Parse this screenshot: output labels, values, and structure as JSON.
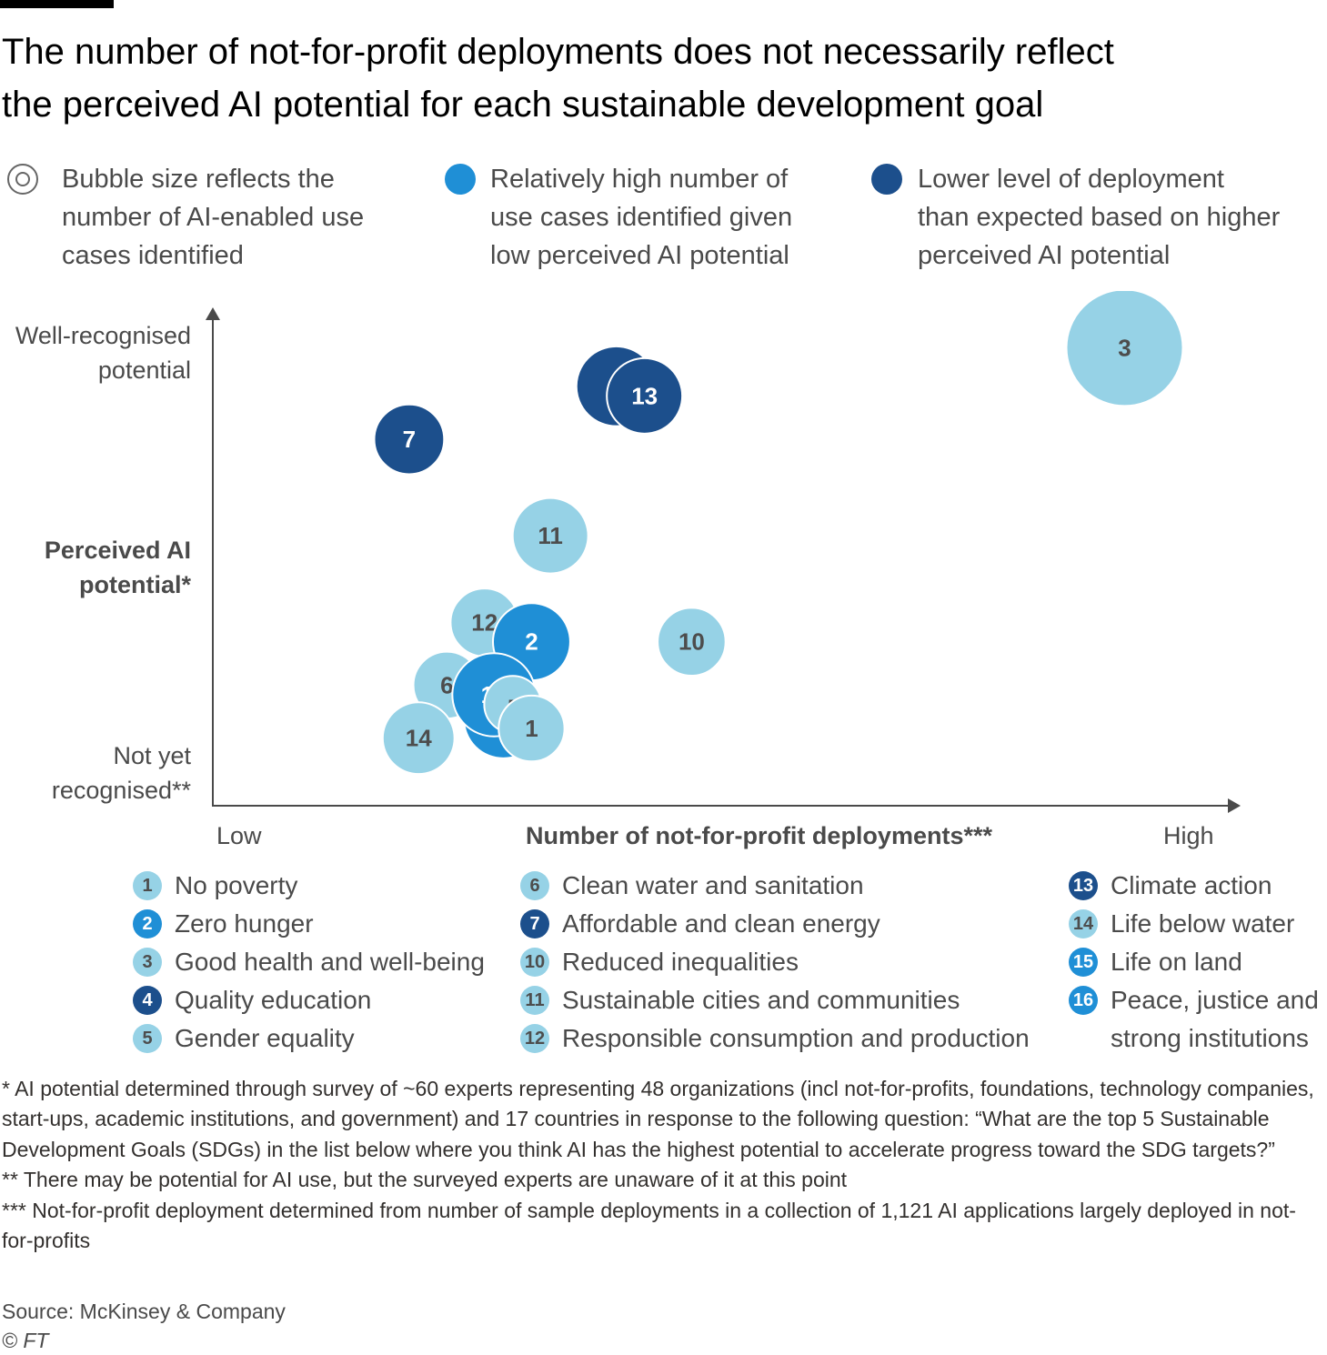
{
  "header": {
    "title_line1": "The number of not-for-profit deployments does not necessarily reflect",
    "title_line2": "the perceived AI potential for each sustainable development goal"
  },
  "key": [
    {
      "lines": [
        "Bubble size reflects the",
        "number of AI-enabled use",
        "cases identified"
      ],
      "style": "hollow"
    },
    {
      "lines": [
        "Relatively high number of",
        "use cases identified given",
        "low perceived AI potential"
      ],
      "color": "#1f8fd6"
    },
    {
      "lines": [
        "Lower level of deployment",
        "than expected based on higher",
        "perceived AI potential"
      ],
      "color": "#1c4f8c"
    }
  ],
  "colors": {
    "light": "#96d2e6",
    "mid": "#1f8fd6",
    "dark": "#1c4f8c",
    "light_text": "#4d4d4d",
    "dark_text": "#ffffff",
    "axis": "#4a4a4a"
  },
  "chart_data": {
    "type": "scatter",
    "xlabel": "Number of not-for-profit deployments***",
    "ylabel": [
      "Perceived AI",
      "potential*"
    ],
    "x_tick_labels": {
      "low": "Low",
      "high": "High"
    },
    "y_tick_labels": {
      "high": [
        "Well-recognised",
        "potential"
      ],
      "low": [
        "Not yet",
        "recognised**"
      ]
    },
    "xlim": [
      0,
      100
    ],
    "ylim": [
      0,
      100
    ],
    "points": [
      {
        "label": "3",
        "x": 90,
        "y": 92,
        "size": 100,
        "tone": "light"
      },
      {
        "label": "4",
        "x": 36,
        "y": 84,
        "size": 47,
        "tone": "dark"
      },
      {
        "label": "13",
        "x": 39,
        "y": 82,
        "size": 42,
        "tone": "dark"
      },
      {
        "label": "7",
        "x": 14,
        "y": 73,
        "size": 36,
        "tone": "dark"
      },
      {
        "label": "11",
        "x": 29,
        "y": 53,
        "size": 42,
        "tone": "light"
      },
      {
        "label": "12",
        "x": 22,
        "y": 35,
        "size": 34,
        "tone": "light"
      },
      {
        "label": "2",
        "x": 27,
        "y": 31,
        "size": 44,
        "tone": "mid"
      },
      {
        "label": "10",
        "x": 44,
        "y": 31,
        "size": 34,
        "tone": "light"
      },
      {
        "label": "6",
        "x": 18,
        "y": 22,
        "size": 33,
        "tone": "light"
      },
      {
        "label": "16",
        "x": 24,
        "y": 15,
        "size": 46,
        "tone": "mid"
      },
      {
        "label": "15",
        "x": 23,
        "y": 20,
        "size": 51,
        "tone": "mid"
      },
      {
        "label": "5",
        "x": 25,
        "y": 18,
        "size": 24,
        "tone": "light"
      },
      {
        "label": "1",
        "x": 27,
        "y": 13,
        "size": 32,
        "tone": "light"
      },
      {
        "label": "14",
        "x": 15,
        "y": 11,
        "size": 38,
        "tone": "light"
      }
    ]
  },
  "legend": {
    "col1": [
      {
        "num": "1",
        "name": "No poverty",
        "tone": "light"
      },
      {
        "num": "2",
        "name": "Zero hunger",
        "tone": "mid"
      },
      {
        "num": "3",
        "name": "Good health and well-being",
        "tone": "light"
      },
      {
        "num": "4",
        "name": "Quality education",
        "tone": "dark"
      },
      {
        "num": "5",
        "name": "Gender equality",
        "tone": "light"
      }
    ],
    "col2": [
      {
        "num": "6",
        "name": "Clean water and sanitation",
        "tone": "light"
      },
      {
        "num": "7",
        "name": "Affordable and clean energy",
        "tone": "dark"
      },
      {
        "num": "10",
        "name": "Reduced inequalities",
        "tone": "light"
      },
      {
        "num": "11",
        "name": "Sustainable cities and communities",
        "tone": "light"
      },
      {
        "num": "12",
        "name": "Responsible consumption and production",
        "tone": "light"
      }
    ],
    "col3": [
      {
        "num": "13",
        "name": "Climate action",
        "tone": "dark"
      },
      {
        "num": "14",
        "name": "Life below water",
        "tone": "light"
      },
      {
        "num": "15",
        "name": "Life on land",
        "tone": "mid"
      },
      {
        "num": "16",
        "name": "Peace, justice and",
        "name2": "strong institutions",
        "tone": "mid"
      }
    ]
  },
  "notes": {
    "n1": "* AI potential determined through survey of ~60 experts representing 48 organizations (incl not-for-profits, foundations, technology companies, start-ups, academic institutions, and government) and 17 countries in response to the following question:  “What are the top 5 Sustainable Development Goals (SDGs) in the list below where you think AI has the highest potential to accelerate progress toward the SDG targets?”",
    "n2": "** There may be potential for AI use, but the surveyed experts are unaware of it at this point",
    "n3": "*** Not-for-profit deployment determined from number of sample deployments in a collection of 1,121 AI applications largely deployed in not-for-profits"
  },
  "source": {
    "text": "Source: McKinsey & Company",
    "copyright": "© FT"
  }
}
